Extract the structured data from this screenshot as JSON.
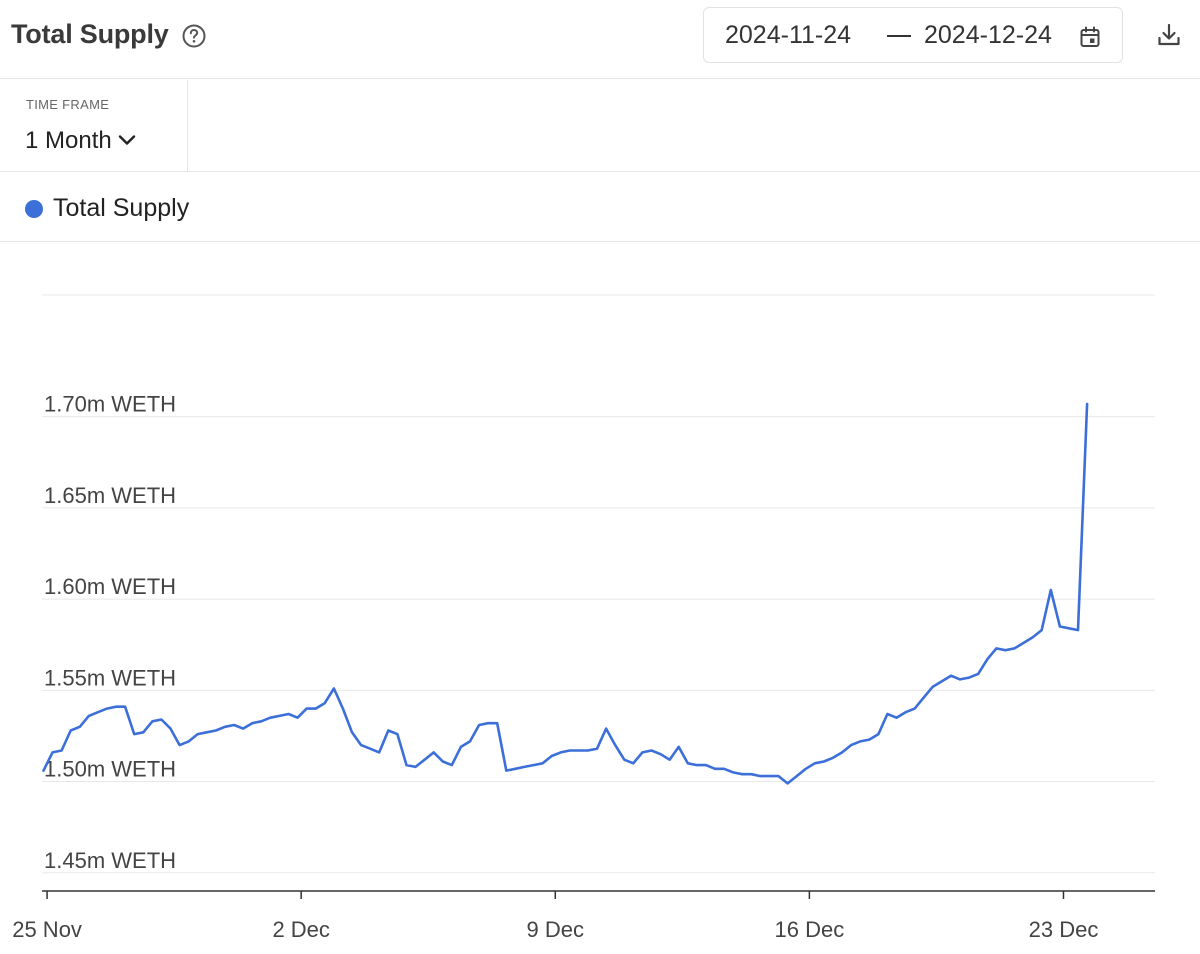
{
  "header": {
    "title": "Total Supply",
    "date_start": "2024-11-24",
    "date_end": "2024-12-24"
  },
  "icons": {
    "help": "help-circle-icon",
    "calendar": "calendar-icon",
    "download": "download-icon",
    "chevron": "chevron-down-icon"
  },
  "timeframe": {
    "label": "TIME FRAME",
    "value": "1 Month"
  },
  "colors": {
    "series": "#3c6fd8",
    "grid": "#e8e8e8",
    "axis": "#333333"
  },
  "chart_data": {
    "type": "line",
    "title": "",
    "xlabel": "",
    "ylabel": "",
    "ylim": [
      1.44,
      1.7667
    ],
    "x_ticks": [
      {
        "day": 0,
        "label": "25 Nov"
      },
      {
        "day": 7,
        "label": "2 Dec"
      },
      {
        "day": 14,
        "label": "9 Dec"
      },
      {
        "day": 21,
        "label": "16 Dec"
      },
      {
        "day": 28,
        "label": "23 Dec"
      }
    ],
    "y_ticks": [
      {
        "value": 1.45,
        "label": "1.45m WETH"
      },
      {
        "value": 1.5,
        "label": "1.50m WETH"
      },
      {
        "value": 1.55,
        "label": "1.55m WETH"
      },
      {
        "value": 1.6,
        "label": "1.60m WETH"
      },
      {
        "value": 1.65,
        "label": "1.65m WETH"
      },
      {
        "value": 1.7,
        "label": "1.70m WETH"
      }
    ],
    "series": [
      {
        "name": "Total Supply",
        "unit": "m WETH",
        "x_start_day": -0.1,
        "x_step_day": 0.25,
        "values": [
          1.506,
          1.516,
          1.517,
          1.528,
          1.53,
          1.536,
          1.538,
          1.54,
          1.541,
          1.541,
          1.526,
          1.527,
          1.533,
          1.534,
          1.529,
          1.52,
          1.522,
          1.526,
          1.527,
          1.528,
          1.53,
          1.531,
          1.529,
          1.532,
          1.533,
          1.535,
          1.536,
          1.537,
          1.535,
          1.54,
          1.54,
          1.543,
          1.551,
          1.54,
          1.527,
          1.52,
          1.518,
          1.516,
          1.528,
          1.526,
          1.509,
          1.508,
          1.512,
          1.516,
          1.511,
          1.509,
          1.519,
          1.522,
          1.531,
          1.532,
          1.532,
          1.506,
          1.507,
          1.508,
          1.509,
          1.51,
          1.514,
          1.516,
          1.517,
          1.517,
          1.517,
          1.518,
          1.529,
          1.52,
          1.512,
          1.51,
          1.516,
          1.517,
          1.515,
          1.512,
          1.519,
          1.51,
          1.509,
          1.509,
          1.507,
          1.507,
          1.505,
          1.504,
          1.504,
          1.503,
          1.503,
          1.503,
          1.499,
          1.503,
          1.507,
          1.51,
          1.511,
          1.513,
          1.516,
          1.52,
          1.522,
          1.523,
          1.526,
          1.537,
          1.535,
          1.538,
          1.54,
          1.546,
          1.552,
          1.555,
          1.558,
          1.556,
          1.557,
          1.559,
          1.567,
          1.573,
          1.572,
          1.573,
          1.576,
          1.579,
          1.583,
          1.605,
          1.585,
          1.584,
          1.583,
          1.707
        ]
      }
    ],
    "legend": {
      "position": "top-left",
      "entries": [
        "Total Supply"
      ]
    },
    "grid": true
  }
}
